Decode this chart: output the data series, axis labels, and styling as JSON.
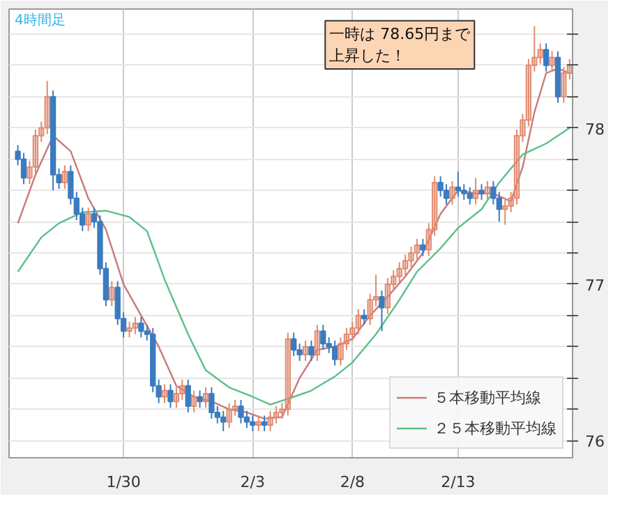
{
  "chart_data": {
    "type": "candlestick",
    "title": "4時間足",
    "categories": [
      null,
      null,
      null,
      null,
      null,
      null,
      null,
      null,
      null,
      null,
      null,
      null,
      null,
      null,
      null,
      null,
      null,
      null,
      "1/30",
      null,
      null,
      null,
      null,
      null,
      null,
      null,
      null,
      null,
      null,
      null,
      null,
      null,
      null,
      null,
      null,
      null,
      null,
      null,
      null,
      null,
      "2/3",
      null,
      null,
      null,
      null,
      null,
      null,
      null,
      null,
      null,
      null,
      null,
      null,
      null,
      null,
      null,
      null,
      "2/8",
      null,
      null,
      null,
      null,
      null,
      null,
      null,
      null,
      null,
      null,
      null,
      null,
      null,
      null,
      null,
      null,
      null,
      "2/13",
      null,
      null,
      null,
      null,
      null,
      null,
      null,
      null,
      null,
      null,
      null,
      null,
      null,
      null,
      null,
      null,
      null,
      null,
      null
    ],
    "ohlc": [
      [
        77.85,
        77.89,
        77.76,
        77.8
      ],
      [
        77.8,
        77.84,
        77.64,
        77.68
      ],
      [
        77.68,
        77.79,
        77.64,
        77.75
      ],
      [
        77.75,
        77.99,
        77.71,
        77.95
      ],
      [
        77.95,
        78.04,
        77.91,
        78.0
      ],
      [
        78.0,
        78.3,
        77.96,
        78.2
      ],
      [
        78.2,
        78.24,
        77.6,
        77.7
      ],
      [
        77.7,
        77.74,
        77.61,
        77.65
      ],
      [
        77.65,
        77.76,
        77.61,
        77.72
      ],
      [
        77.72,
        77.76,
        77.51,
        77.55
      ],
      [
        77.55,
        77.59,
        77.41,
        77.45
      ],
      [
        77.45,
        77.49,
        77.34,
        77.38
      ],
      [
        77.38,
        77.49,
        77.34,
        77.45
      ],
      [
        77.45,
        77.49,
        77.36,
        77.4
      ],
      [
        77.4,
        77.44,
        77.06,
        77.1
      ],
      [
        77.1,
        77.14,
        76.86,
        76.9
      ],
      [
        76.9,
        77.02,
        76.86,
        76.98
      ],
      [
        76.98,
        77.02,
        76.74,
        76.78
      ],
      [
        76.78,
        76.82,
        76.66,
        76.7
      ],
      [
        76.7,
        76.76,
        76.66,
        76.72
      ],
      [
        76.72,
        76.79,
        76.68,
        76.75
      ],
      [
        76.75,
        76.79,
        76.66,
        76.7
      ],
      [
        76.7,
        76.74,
        76.64,
        76.68
      ],
      [
        76.68,
        76.72,
        76.31,
        76.35
      ],
      [
        76.35,
        76.39,
        76.24,
        76.28
      ],
      [
        76.28,
        76.36,
        76.24,
        76.32
      ],
      [
        76.32,
        76.36,
        76.21,
        76.25
      ],
      [
        76.25,
        76.34,
        76.21,
        76.3
      ],
      [
        76.3,
        76.39,
        76.26,
        76.35
      ],
      [
        76.35,
        76.39,
        76.18,
        76.22
      ],
      [
        76.22,
        76.32,
        76.18,
        76.28
      ],
      [
        76.28,
        76.32,
        76.21,
        76.25
      ],
      [
        76.25,
        76.34,
        76.21,
        76.3
      ],
      [
        76.3,
        76.34,
        76.14,
        76.18
      ],
      [
        76.18,
        76.22,
        76.11,
        76.15
      ],
      [
        76.15,
        76.19,
        76.06,
        76.12
      ],
      [
        76.12,
        76.24,
        76.08,
        76.2
      ],
      [
        76.2,
        76.26,
        76.16,
        76.22
      ],
      [
        76.22,
        76.26,
        76.11,
        76.15
      ],
      [
        76.15,
        76.19,
        76.08,
        76.12
      ],
      [
        76.12,
        76.16,
        76.06,
        76.1
      ],
      [
        76.1,
        76.16,
        76.06,
        76.12
      ],
      [
        76.12,
        76.16,
        76.06,
        76.1
      ],
      [
        76.1,
        76.19,
        76.06,
        76.15
      ],
      [
        76.15,
        76.22,
        76.11,
        76.18
      ],
      [
        76.18,
        76.24,
        76.14,
        76.2
      ],
      [
        76.2,
        76.69,
        76.16,
        76.65
      ],
      [
        76.65,
        76.69,
        76.54,
        76.58
      ],
      [
        76.58,
        76.62,
        76.51,
        76.55
      ],
      [
        76.55,
        76.64,
        76.51,
        76.6
      ],
      [
        76.6,
        76.64,
        76.51,
        76.55
      ],
      [
        76.55,
        76.74,
        76.51,
        76.7
      ],
      [
        76.7,
        76.74,
        76.58,
        76.62
      ],
      [
        76.62,
        76.66,
        76.56,
        76.6
      ],
      [
        76.6,
        76.64,
        76.48,
        76.52
      ],
      [
        76.52,
        76.66,
        76.48,
        76.62
      ],
      [
        76.62,
        76.72,
        76.58,
        76.68
      ],
      [
        76.68,
        76.76,
        76.64,
        76.72
      ],
      [
        76.72,
        76.84,
        76.68,
        76.8
      ],
      [
        76.8,
        76.84,
        76.74,
        76.78
      ],
      [
        76.78,
        76.94,
        76.74,
        76.9
      ],
      [
        76.9,
        77.06,
        76.86,
        76.92
      ],
      [
        76.92,
        76.96,
        76.7,
        76.85
      ],
      [
        76.85,
        77.04,
        76.81,
        77.0
      ],
      [
        77.0,
        77.09,
        76.96,
        77.05
      ],
      [
        77.05,
        77.14,
        77.01,
        77.1
      ],
      [
        77.1,
        77.19,
        77.06,
        77.15
      ],
      [
        77.15,
        77.24,
        77.11,
        77.2
      ],
      [
        77.2,
        77.29,
        77.16,
        77.25
      ],
      [
        77.25,
        77.29,
        77.18,
        77.22
      ],
      [
        77.22,
        77.39,
        77.18,
        77.35
      ],
      [
        77.35,
        77.69,
        77.31,
        77.65
      ],
      [
        77.65,
        77.69,
        77.56,
        77.6
      ],
      [
        77.6,
        77.64,
        77.51,
        77.55
      ],
      [
        77.55,
        77.66,
        77.51,
        77.62
      ],
      [
        77.62,
        77.72,
        77.56,
        77.6
      ],
      [
        77.6,
        77.64,
        77.54,
        77.58
      ],
      [
        77.58,
        77.62,
        77.51,
        77.55
      ],
      [
        77.55,
        77.68,
        77.51,
        77.6
      ],
      [
        77.6,
        77.64,
        77.54,
        77.58
      ],
      [
        77.58,
        77.66,
        77.54,
        77.62
      ],
      [
        77.62,
        77.66,
        77.51,
        77.55
      ],
      [
        77.55,
        77.59,
        77.4,
        77.48
      ],
      [
        77.48,
        77.54,
        77.38,
        77.5
      ],
      [
        77.5,
        77.59,
        77.46,
        77.55
      ],
      [
        77.55,
        77.99,
        77.51,
        77.95
      ],
      [
        77.95,
        78.09,
        77.91,
        78.05
      ],
      [
        78.05,
        78.44,
        78.01,
        78.4
      ],
      [
        78.4,
        78.65,
        78.36,
        78.45
      ],
      [
        78.45,
        78.54,
        78.41,
        78.5
      ],
      [
        78.5,
        78.54,
        78.36,
        78.4
      ],
      [
        78.4,
        78.49,
        78.36,
        78.45
      ],
      [
        78.45,
        78.49,
        78.16,
        78.2
      ],
      [
        78.2,
        78.39,
        78.16,
        78.35
      ],
      [
        78.35,
        78.44,
        78.31,
        78.4
      ]
    ],
    "colors": [
      "#3b7bbf",
      "#3b7bbf",
      "#e08a70",
      "#e08a70",
      "#e08a70",
      "#e08a70",
      "#3b7bbf",
      "#3b7bbf",
      "#e08a70",
      "#3b7bbf",
      "#3b7bbf",
      "#3b7bbf",
      "#e08a70",
      "#3b7bbf",
      "#3b7bbf",
      "#3b7bbf",
      "#e08a70",
      "#3b7bbf",
      "#3b7bbf",
      "#e08a70",
      "#e08a70",
      "#3b7bbf",
      "#3b7bbf",
      "#3b7bbf",
      "#3b7bbf",
      "#e08a70",
      "#3b7bbf",
      "#e08a70",
      "#e08a70",
      "#3b7bbf",
      "#e08a70",
      "#3b7bbf",
      "#e08a70",
      "#3b7bbf",
      "#3b7bbf",
      "#3b7bbf",
      "#e08a70",
      "#e08a70",
      "#3b7bbf",
      "#3b7bbf",
      "#3b7bbf",
      "#e08a70",
      "#3b7bbf",
      "#e08a70",
      "#e08a70",
      "#e08a70",
      "#e08a70",
      "#3b7bbf",
      "#3b7bbf",
      "#e08a70",
      "#3b7bbf",
      "#e08a70",
      "#3b7bbf",
      "#3b7bbf",
      "#3b7bbf",
      "#e08a70",
      "#e08a70",
      "#e08a70",
      "#e08a70",
      "#3b7bbf",
      "#e08a70",
      "#e08a70",
      "#3b7bbf",
      "#e08a70",
      "#e08a70",
      "#e08a70",
      "#e08a70",
      "#e08a70",
      "#e08a70",
      "#3b7bbf",
      "#e08a70",
      "#e08a70",
      "#3b7bbf",
      "#3b7bbf",
      "#e08a70",
      "#3b7bbf",
      "#3b7bbf",
      "#3b7bbf",
      "#e08a70",
      "#3b7bbf",
      "#e08a70",
      "#3b7bbf",
      "#3b7bbf",
      "#e08a70",
      "#e08a70",
      "#e08a70",
      "#e08a70",
      "#e08a70",
      "#e08a70",
      "#e08a70",
      "#3b7bbf",
      "#e08a70",
      "#3b7bbf",
      "#e08a70",
      "#e08a70"
    ],
    "series": [
      {
        "name": "５本移動平均線",
        "type": "line",
        "color": "#c87a7a",
        "values": [
          77.39,
          null,
          null,
          77.7,
          null,
          null,
          77.95,
          null,
          null,
          77.85,
          null,
          null,
          77.55,
          null,
          null,
          77.35,
          null,
          null,
          77.0,
          null,
          null,
          76.8,
          null,
          null,
          76.6,
          null,
          null,
          76.35,
          null,
          null,
          76.28,
          null,
          null,
          76.25,
          null,
          null,
          76.2,
          null,
          null,
          76.18,
          null,
          null,
          76.14,
          null,
          null,
          76.15,
          null,
          null,
          76.4,
          null,
          null,
          76.58,
          null,
          null,
          76.6,
          null,
          null,
          76.65,
          null,
          null,
          76.8,
          null,
          null,
          76.92,
          null,
          null,
          77.05,
          null,
          null,
          77.2,
          null,
          null,
          77.45,
          null,
          null,
          77.6,
          null,
          null,
          77.58,
          null,
          null,
          77.58,
          null,
          null,
          77.53,
          null,
          77.75,
          null,
          78.1,
          null,
          78.35,
          null,
          78.38,
          null,
          78.35
        ]
      },
      {
        "name": "２５本移動平均線",
        "type": "line",
        "color": "#5cbf8a",
        "values": [
          77.08,
          null,
          null,
          null,
          77.3,
          null,
          null,
          77.39,
          null,
          null,
          null,
          77.46,
          null,
          null,
          null,
          77.47,
          null,
          null,
          null,
          77.43,
          null,
          null,
          77.34,
          null,
          null,
          77.03,
          null,
          null,
          null,
          76.68,
          null,
          null,
          76.45,
          null,
          null,
          null,
          76.34,
          null,
          null,
          null,
          76.28,
          null,
          null,
          76.23,
          null,
          null,
          null,
          76.28,
          null,
          null,
          76.32,
          null,
          null,
          null,
          76.41,
          null,
          null,
          76.5,
          null,
          null,
          null,
          76.68,
          null,
          null,
          null,
          76.9,
          null,
          null,
          77.08,
          null,
          null,
          null,
          77.23,
          null,
          null,
          77.36,
          null,
          null,
          null,
          77.48,
          null,
          null,
          77.65,
          null,
          null,
          null,
          77.83,
          null,
          null,
          null,
          77.9,
          null,
          null,
          null,
          78.0
        ]
      }
    ],
    "ylim": [
      75.89,
      78.76
    ],
    "yticks": [
      76,
      {
        "value": 76.2,
        "label": null
      },
      {
        "value": 76.4,
        "label": null
      },
      {
        "value": 76.6,
        "label": null
      },
      {
        "value": 76.8,
        "label": null
      },
      77,
      {
        "value": 77.2,
        "label": null
      },
      {
        "value": 77.4,
        "label": null
      },
      {
        "value": 77.6,
        "label": null
      },
      {
        "value": 77.8,
        "label": null
      },
      78,
      {
        "value": 78.2,
        "label": null
      },
      {
        "value": 78.4,
        "label": null
      },
      {
        "value": 78.6,
        "label": null
      }
    ],
    "annotations": [
      "一時は 78.65円まで上昇した！"
    ],
    "grid": true,
    "legend": "bottom right"
  }
}
